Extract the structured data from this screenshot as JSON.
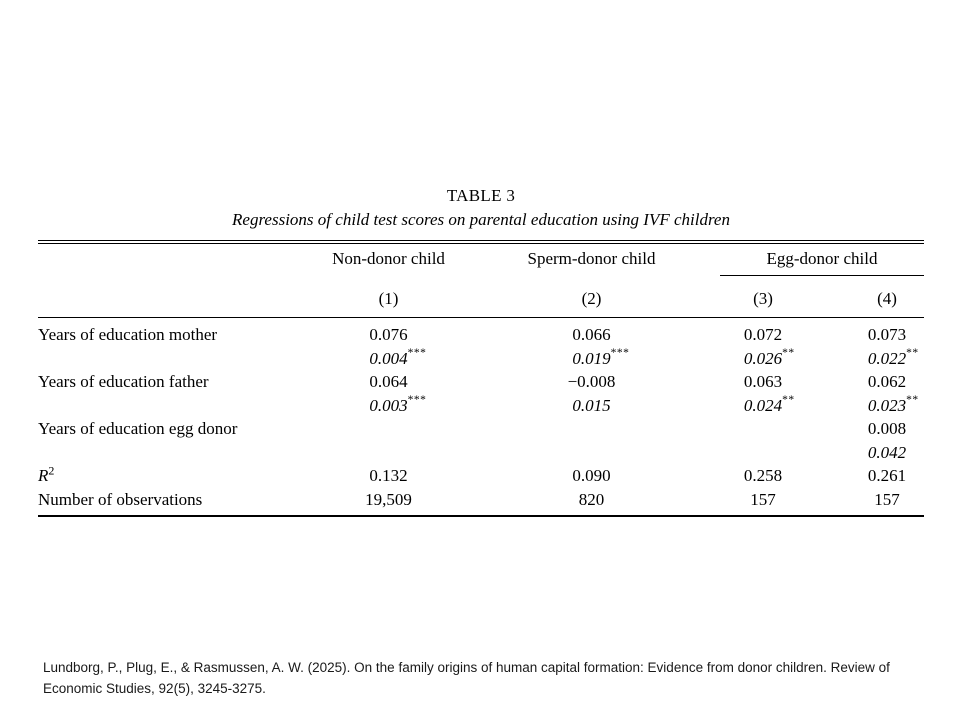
{
  "table": {
    "title": "TABLE 3",
    "subtitle": "Regressions of child test scores on parental education using IVF children",
    "group_headers": {
      "col1": "Non-donor child",
      "col2": "Sperm-donor child",
      "col34": "Egg-donor child"
    },
    "column_numbers": [
      "(1)",
      "(2)",
      "(3)",
      "(4)"
    ],
    "rows": [
      {
        "label": "Years of education mother",
        "c1": "0.076",
        "c2": "0.066",
        "c3": "0.072",
        "c4": "0.073"
      },
      {
        "c1": "0.004",
        "c1s": "***",
        "c2": "0.019",
        "c2s": "***",
        "c3": "0.026",
        "c3s": "**",
        "c4": "0.022",
        "c4s": "**"
      },
      {
        "label": "Years of education father",
        "c1": "0.064",
        "c2": "−0.008",
        "c3": "0.063",
        "c4": "0.062"
      },
      {
        "c1": "0.003",
        "c1s": "***",
        "c2": "0.015",
        "c3": "0.024",
        "c3s": "**",
        "c4": "0.023",
        "c4s": "**"
      },
      {
        "label": "Years of education egg donor",
        "c4": "0.008"
      },
      {
        "c4": "0.042"
      },
      {
        "label_base": "R",
        "label_sup": "2",
        "c1": "0.132",
        "c2": "0.090",
        "c3": "0.258",
        "c4": "0.261"
      },
      {
        "label": "Number of observations",
        "c1": "19,509",
        "c2": "820",
        "c3": "157",
        "c4": "157"
      }
    ]
  },
  "citation": {
    "line1": "Lundborg, P., Plug, E., & Rasmussen, A. W. (2025). On the family origins of human capital formation: Evidence from donor children. Review of",
    "line2": "Economic Studies, 92(5), 3245-3275."
  }
}
